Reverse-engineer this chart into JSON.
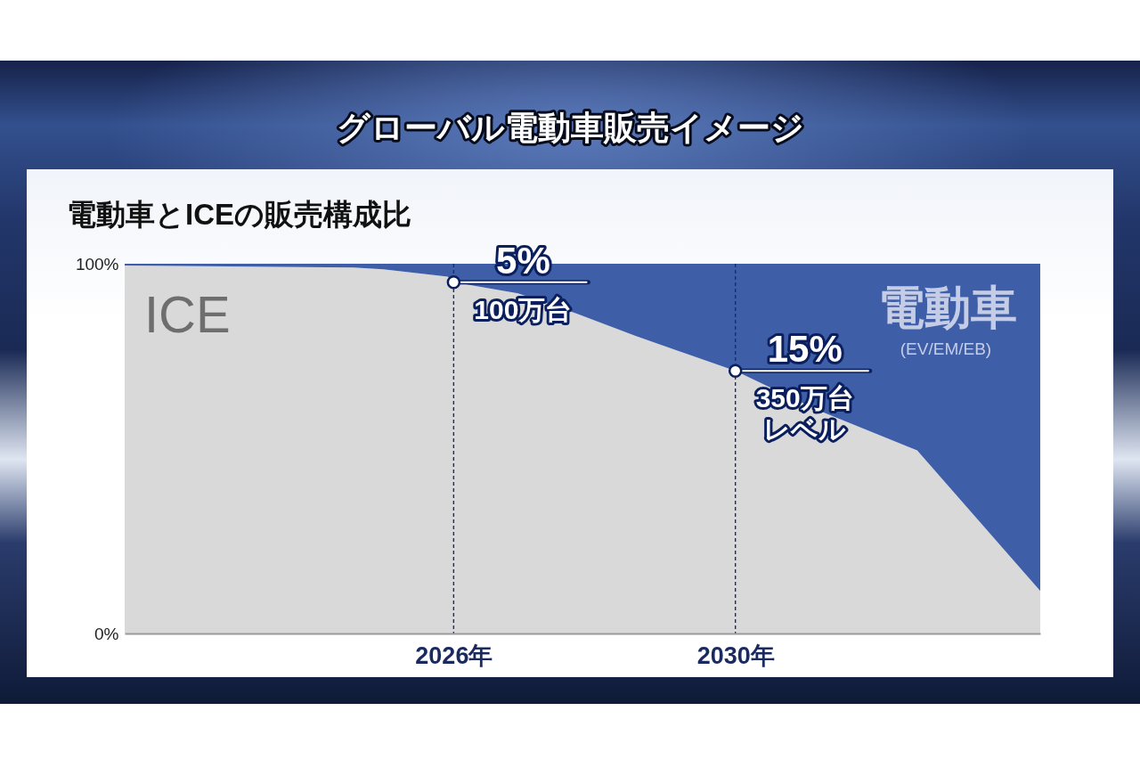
{
  "chart_data": {
    "type": "area",
    "title": "グローバル電動車販売イメージ",
    "subtitle": "電動車とICEの販売構成比",
    "x": [
      "2021-05",
      "2024-08",
      "2025-01",
      "2025-12",
      "2026",
      "2026-12",
      "2027-10",
      "2028-08",
      "2030",
      "2031-03",
      "2032-08",
      "2034-05"
    ],
    "xlim": [
      "2021-05",
      "2034-05"
    ],
    "xticks": [
      {
        "value": "2026",
        "label": "2026年"
      },
      {
        "value": "2030",
        "label": "2030年"
      }
    ],
    "ylim": [
      0,
      100
    ],
    "yticks": [
      {
        "value": 0,
        "label": "0%"
      },
      {
        "value": 100,
        "label": "100%"
      }
    ],
    "stacked": true,
    "series": [
      {
        "name": "ICE",
        "color": "#d9d9d9",
        "values": [
          99.5,
          99,
          98.5,
          96.5,
          95,
          92,
          86.5,
          80.5,
          71,
          60.5,
          49.5,
          11.5
        ]
      },
      {
        "name": "電動車",
        "color": "#3f5ea8",
        "values": [
          0.5,
          1,
          1.5,
          3.5,
          5,
          8,
          13.5,
          19.5,
          29,
          39.5,
          50.5,
          88.5
        ]
      }
    ],
    "ref_lines": [
      {
        "axis": "x",
        "value": "2026",
        "color": "#1b2d66",
        "line_style": "dashed"
      },
      {
        "axis": "x",
        "value": "2030",
        "color": "#1b2d66",
        "line_style": "dashed"
      }
    ],
    "annotations": [
      {
        "text": "5%",
        "x": "2026",
        "y": 95
      },
      {
        "text": "100万台",
        "x": "2026",
        "y": 95
      },
      {
        "text": "15%",
        "x": "2030",
        "y": 71
      },
      {
        "text": "350万台",
        "x": "2030",
        "y": 71
      },
      {
        "text": "レベル",
        "x": "2030",
        "y": 71
      },
      "(EV/EM/EB)"
    ]
  }
}
